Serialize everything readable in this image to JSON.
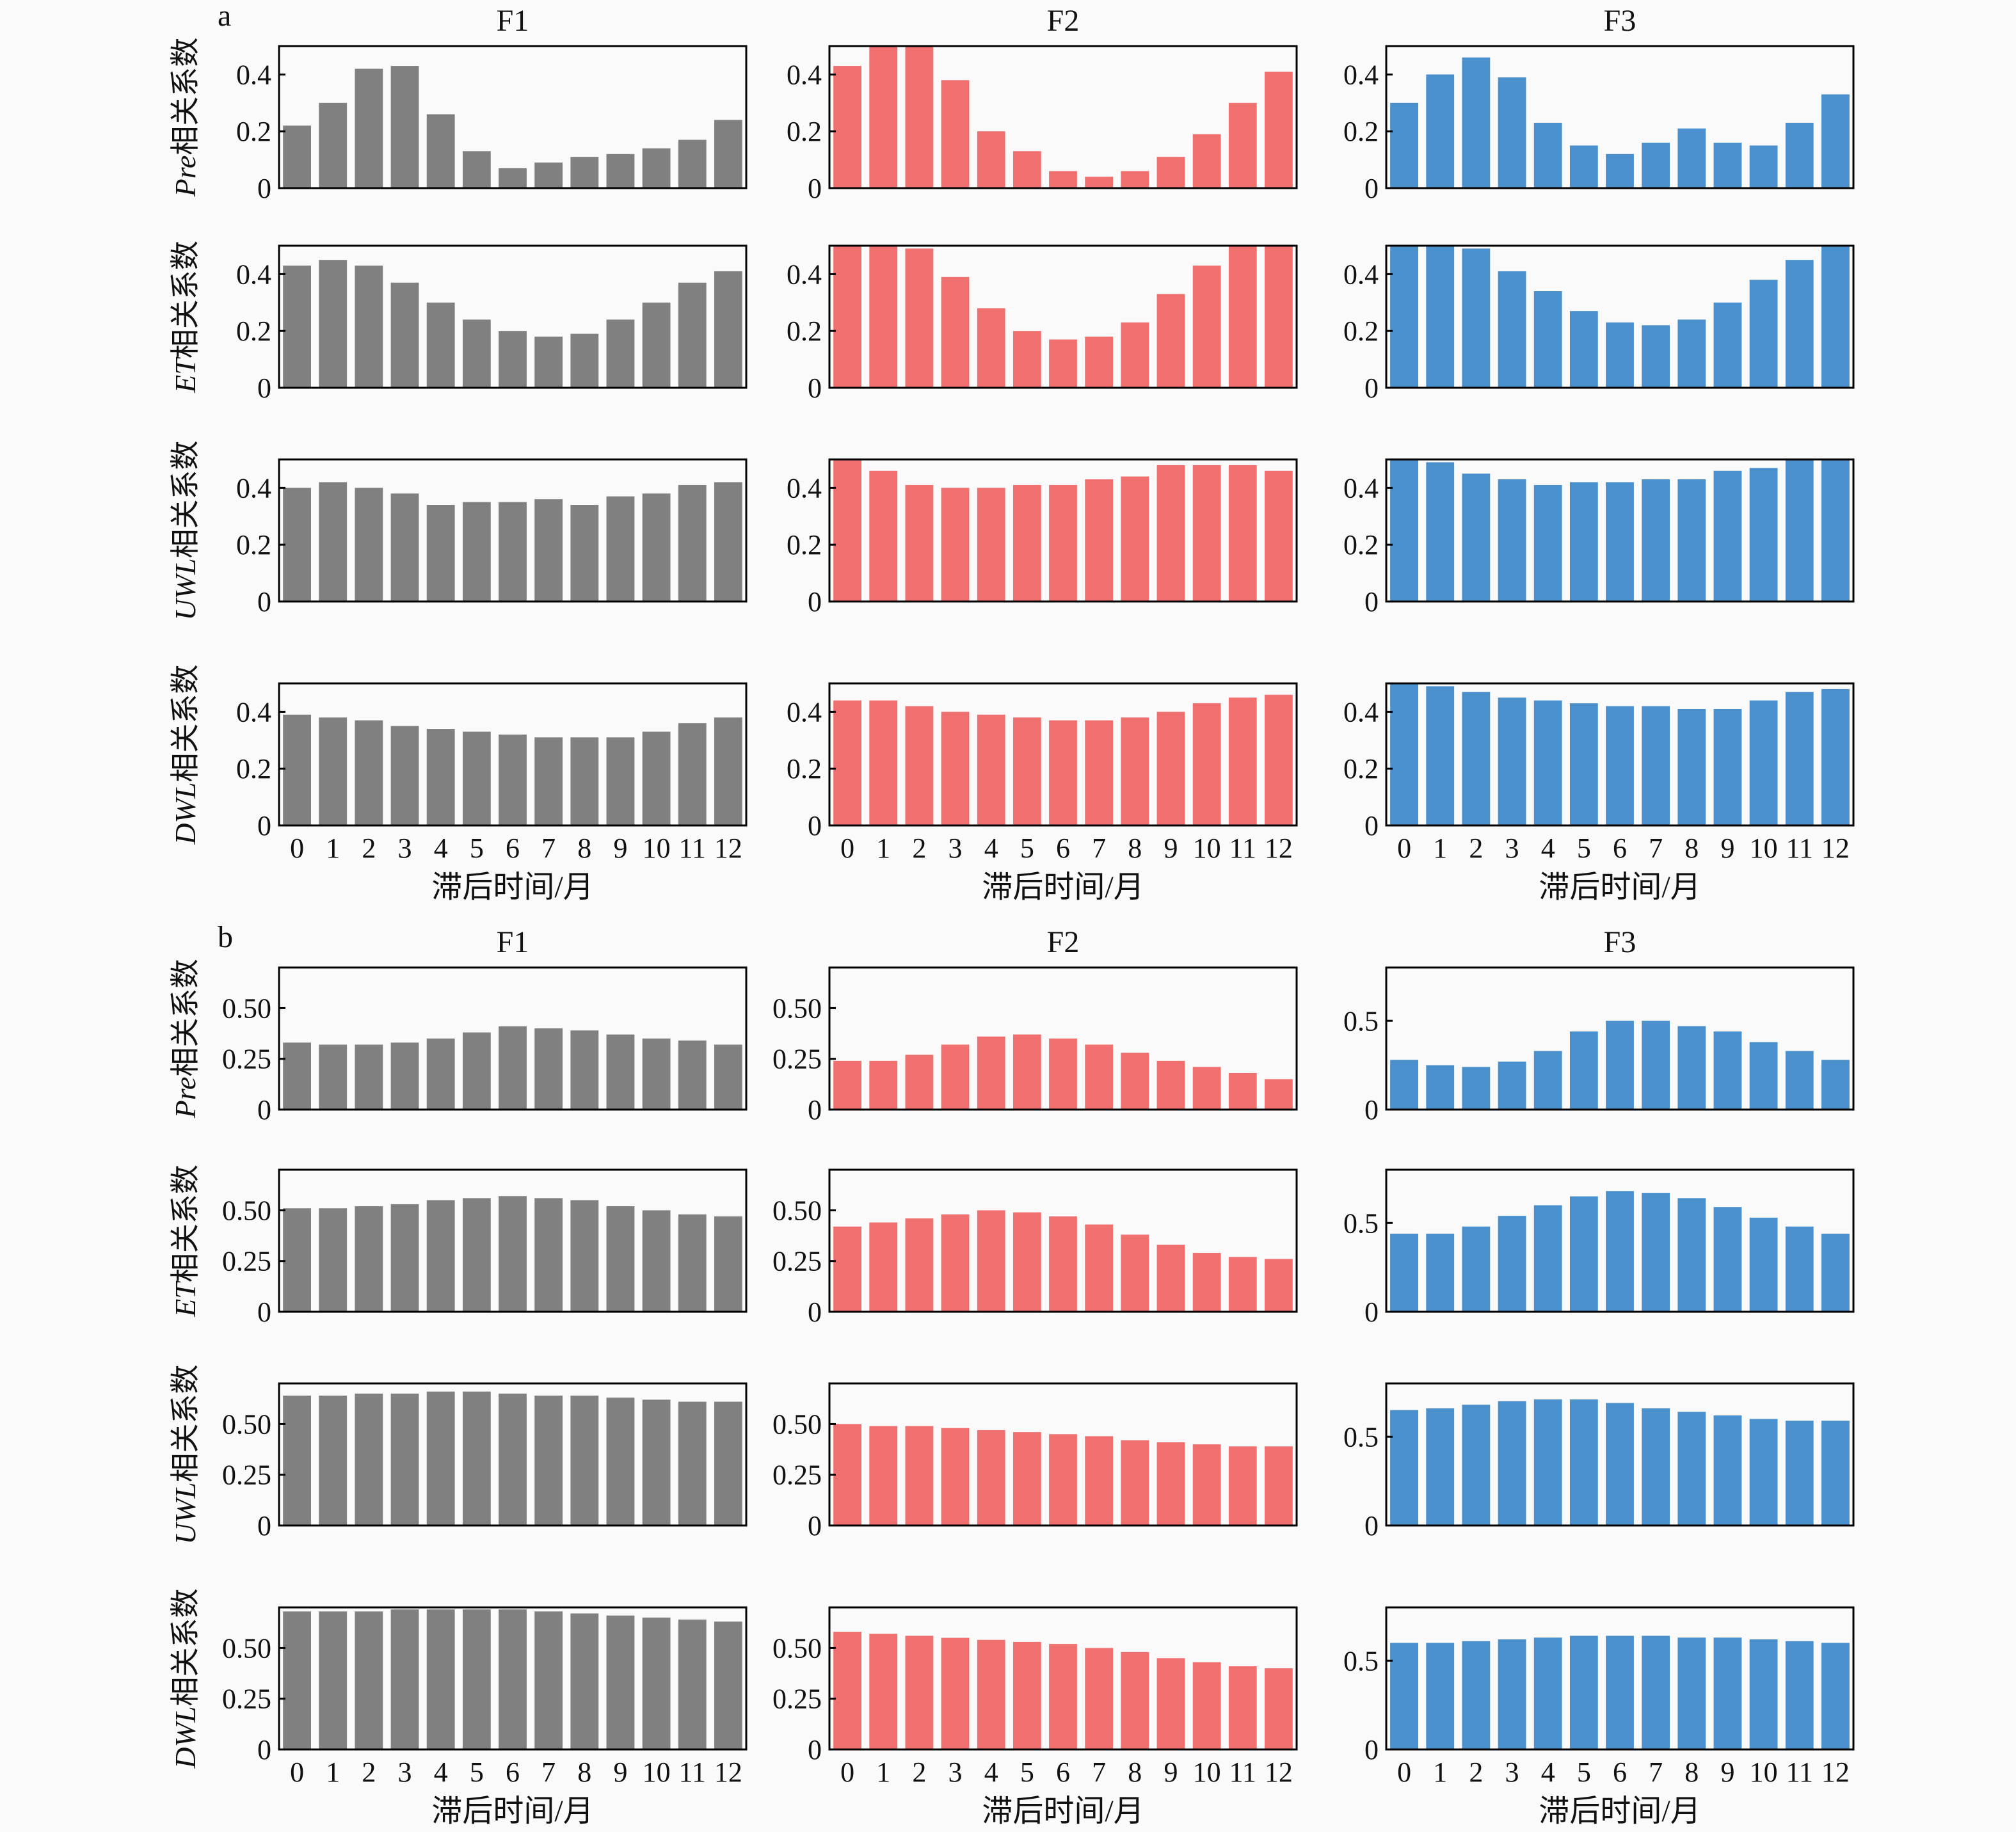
{
  "colors": {
    "F1": "#808080",
    "F2": "#f07070",
    "F3": "#4a90cc"
  },
  "chart_data": [
    {
      "panel": "a",
      "type": "bar",
      "columns": [
        "F1",
        "F2",
        "F3"
      ],
      "rows": [
        {
          "variable": "Pre",
          "ylabel_suffix": "相关系数"
        },
        {
          "variable": "ET",
          "ylabel_suffix": "相关系数"
        },
        {
          "variable": "UWL",
          "ylabel_suffix": "相关系数"
        },
        {
          "variable": "DWL",
          "ylabel_suffix": "相关系数"
        }
      ],
      "categories": [
        "0",
        "1",
        "2",
        "3",
        "4",
        "5",
        "6",
        "7",
        "8",
        "9",
        "10",
        "11",
        "12"
      ],
      "xlabel": "滞后时间/月",
      "ylim": {
        "F1": [
          0,
          0.5
        ],
        "F2": [
          0,
          0.5
        ],
        "F3": [
          0,
          0.5
        ]
      },
      "yticks": {
        "F1": [
          "0",
          "0.2",
          "0.4"
        ],
        "F2": [
          "0",
          "0.2",
          "0.4"
        ],
        "F3": [
          "0",
          "0.2",
          "0.4"
        ]
      },
      "ytick_values": {
        "F1": [
          0,
          0.2,
          0.4
        ],
        "F2": [
          0,
          0.2,
          0.4
        ],
        "F3": [
          0,
          0.2,
          0.4
        ]
      },
      "values": {
        "Pre": {
          "F1": [
            0.22,
            0.3,
            0.42,
            0.43,
            0.26,
            0.13,
            0.07,
            0.09,
            0.11,
            0.12,
            0.14,
            0.17,
            0.24
          ],
          "F2": [
            0.43,
            0.5,
            0.5,
            0.38,
            0.2,
            0.13,
            0.06,
            0.04,
            0.06,
            0.11,
            0.19,
            0.3,
            0.41
          ],
          "F3": [
            0.3,
            0.4,
            0.46,
            0.39,
            0.23,
            0.15,
            0.12,
            0.16,
            0.21,
            0.16,
            0.15,
            0.23,
            0.33
          ]
        },
        "ET": {
          "F1": [
            0.43,
            0.45,
            0.43,
            0.37,
            0.3,
            0.24,
            0.2,
            0.18,
            0.19,
            0.24,
            0.3,
            0.37,
            0.41
          ],
          "F2": [
            0.5,
            0.5,
            0.49,
            0.39,
            0.28,
            0.2,
            0.17,
            0.18,
            0.23,
            0.33,
            0.43,
            0.5,
            0.5
          ],
          "F3": [
            0.5,
            0.5,
            0.49,
            0.41,
            0.34,
            0.27,
            0.23,
            0.22,
            0.24,
            0.3,
            0.38,
            0.45,
            0.5
          ]
        },
        "UWL": {
          "F1": [
            0.4,
            0.42,
            0.4,
            0.38,
            0.34,
            0.35,
            0.35,
            0.36,
            0.34,
            0.37,
            0.38,
            0.41,
            0.42
          ],
          "F2": [
            0.5,
            0.46,
            0.41,
            0.4,
            0.4,
            0.41,
            0.41,
            0.43,
            0.44,
            0.48,
            0.48,
            0.48,
            0.46
          ],
          "F3": [
            0.5,
            0.49,
            0.45,
            0.43,
            0.41,
            0.42,
            0.42,
            0.43,
            0.43,
            0.46,
            0.47,
            0.5,
            0.5
          ]
        },
        "DWL": {
          "F1": [
            0.39,
            0.38,
            0.37,
            0.35,
            0.34,
            0.33,
            0.32,
            0.31,
            0.31,
            0.31,
            0.33,
            0.36,
            0.38
          ],
          "F2": [
            0.44,
            0.44,
            0.42,
            0.4,
            0.39,
            0.38,
            0.37,
            0.37,
            0.38,
            0.4,
            0.43,
            0.45,
            0.46
          ],
          "F3": [
            0.5,
            0.49,
            0.47,
            0.45,
            0.44,
            0.43,
            0.42,
            0.42,
            0.41,
            0.41,
            0.44,
            0.47,
            0.48
          ]
        }
      }
    },
    {
      "panel": "b",
      "type": "bar",
      "columns": [
        "F1",
        "F2",
        "F3"
      ],
      "rows": [
        {
          "variable": "Pre",
          "ylabel_suffix": "相关系数"
        },
        {
          "variable": "ET",
          "ylabel_suffix": "相关系数"
        },
        {
          "variable": "UWL",
          "ylabel_suffix": "相关系数"
        },
        {
          "variable": "DWL",
          "ylabel_suffix": "相关系数"
        }
      ],
      "categories": [
        "0",
        "1",
        "2",
        "3",
        "4",
        "5",
        "6",
        "7",
        "8",
        "9",
        "10",
        "11",
        "12"
      ],
      "xlabel": "滞后时间/月",
      "ylim": {
        "F1": [
          0,
          0.7
        ],
        "F2": [
          0,
          0.7
        ],
        "F3": [
          0,
          0.8
        ]
      },
      "yticks": {
        "F1": [
          "0",
          "0.25",
          "0.50"
        ],
        "F2": [
          "0",
          "0.25",
          "0.50"
        ],
        "F3": [
          "0",
          "0.5"
        ]
      },
      "ytick_values": {
        "F1": [
          0,
          0.25,
          0.5
        ],
        "F2": [
          0,
          0.25,
          0.5
        ],
        "F3": [
          0,
          0.5
        ]
      },
      "values": {
        "Pre": {
          "F1": [
            0.33,
            0.32,
            0.32,
            0.33,
            0.35,
            0.38,
            0.41,
            0.4,
            0.39,
            0.37,
            0.35,
            0.34,
            0.32
          ],
          "F2": [
            0.24,
            0.24,
            0.27,
            0.32,
            0.36,
            0.37,
            0.35,
            0.32,
            0.28,
            0.24,
            0.21,
            0.18,
            0.15
          ],
          "F3": [
            0.28,
            0.25,
            0.24,
            0.27,
            0.33,
            0.44,
            0.5,
            0.5,
            0.47,
            0.44,
            0.38,
            0.33,
            0.28
          ]
        },
        "ET": {
          "F1": [
            0.51,
            0.51,
            0.52,
            0.53,
            0.55,
            0.56,
            0.57,
            0.56,
            0.55,
            0.52,
            0.5,
            0.48,
            0.47
          ],
          "F2": [
            0.42,
            0.44,
            0.46,
            0.48,
            0.5,
            0.49,
            0.47,
            0.43,
            0.38,
            0.33,
            0.29,
            0.27,
            0.26
          ],
          "F3": [
            0.44,
            0.44,
            0.48,
            0.54,
            0.6,
            0.65,
            0.68,
            0.67,
            0.64,
            0.59,
            0.53,
            0.48,
            0.44
          ]
        },
        "UWL": {
          "F1": [
            0.64,
            0.64,
            0.65,
            0.65,
            0.66,
            0.66,
            0.65,
            0.64,
            0.64,
            0.63,
            0.62,
            0.61,
            0.61
          ],
          "F2": [
            0.5,
            0.49,
            0.49,
            0.48,
            0.47,
            0.46,
            0.45,
            0.44,
            0.42,
            0.41,
            0.4,
            0.39,
            0.39
          ],
          "F3": [
            0.65,
            0.66,
            0.68,
            0.7,
            0.71,
            0.71,
            0.69,
            0.66,
            0.64,
            0.62,
            0.6,
            0.59,
            0.59
          ]
        },
        "DWL": {
          "F1": [
            0.68,
            0.68,
            0.68,
            0.69,
            0.69,
            0.69,
            0.69,
            0.68,
            0.67,
            0.66,
            0.65,
            0.64,
            0.63
          ],
          "F2": [
            0.58,
            0.57,
            0.56,
            0.55,
            0.54,
            0.53,
            0.52,
            0.5,
            0.48,
            0.45,
            0.43,
            0.41,
            0.4
          ],
          "F3": [
            0.6,
            0.6,
            0.61,
            0.62,
            0.63,
            0.64,
            0.64,
            0.64,
            0.63,
            0.63,
            0.62,
            0.61,
            0.6
          ]
        }
      }
    }
  ],
  "labels": {
    "panel_a": "a",
    "panel_b": "b",
    "columns": [
      "F1",
      "F2",
      "F3"
    ],
    "ylabel_suffix": "相关系数",
    "xlabel": "滞后时间/月"
  }
}
